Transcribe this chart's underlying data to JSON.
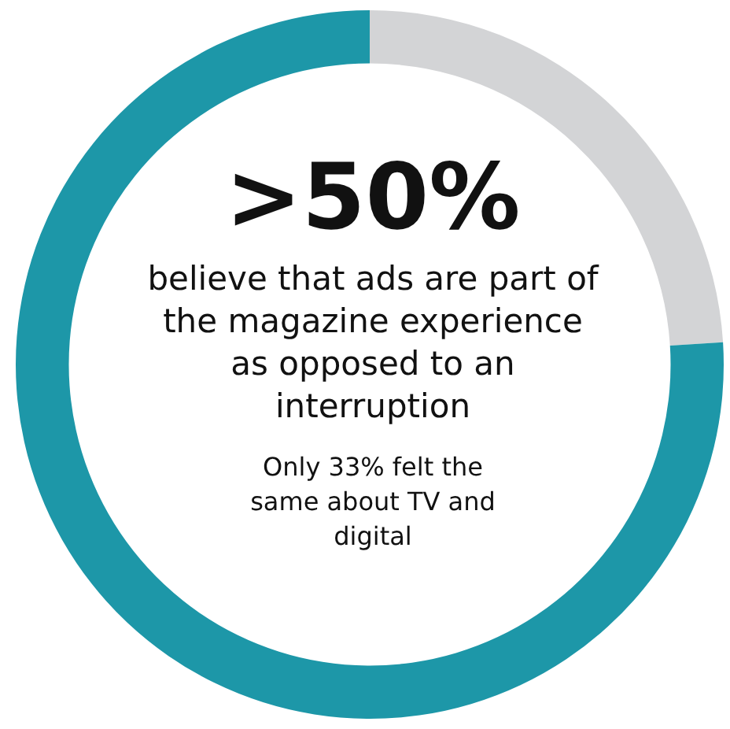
{
  "chart_data": {
    "type": "donut",
    "title": ">50%",
    "annotations": [
      "believe that ads are part of the magazine experience as opposed to an interruption",
      "Only 33% felt the same about TV and digital"
    ],
    "categories": [
      null,
      null
    ],
    "values": [
      24,
      76
    ],
    "colors": [
      "#d3d4d6",
      "#1d97a8"
    ],
    "legend": false
  }
}
